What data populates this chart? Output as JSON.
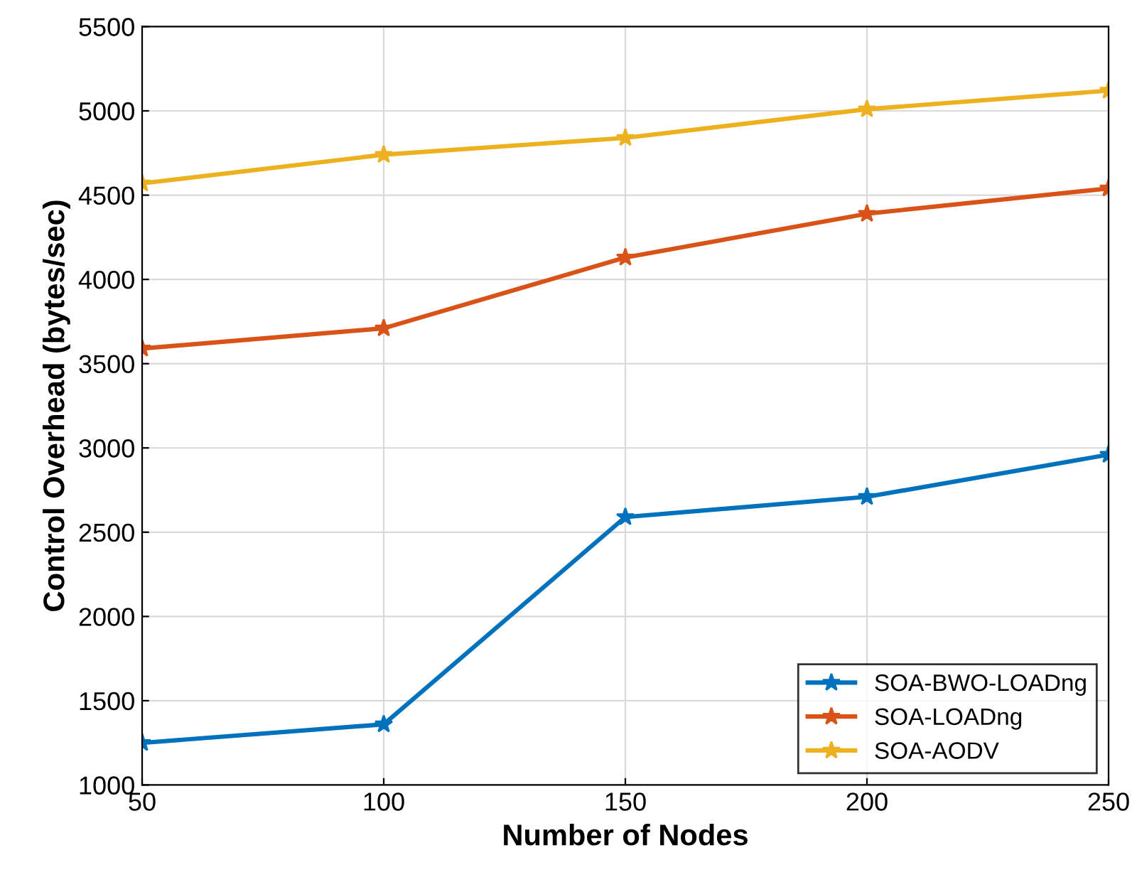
{
  "chart_data": {
    "type": "line",
    "xlabel": "Number of Nodes",
    "ylabel": "Control Overhead (bytes/sec)",
    "x": [
      50,
      100,
      150,
      200,
      250
    ],
    "series": [
      {
        "name": "SOA-BWO-LOADng",
        "color": "#0072bd",
        "values": [
          1250,
          1360,
          2590,
          2710,
          2960
        ]
      },
      {
        "name": "SOA-LOADng",
        "color": "#d95319",
        "values": [
          3590,
          3710,
          4130,
          4390,
          4540
        ]
      },
      {
        "name": "SOA-AODV",
        "color": "#edb120",
        "values": [
          4570,
          4740,
          4840,
          5010,
          5120
        ]
      }
    ],
    "xlim": [
      50,
      250
    ],
    "xticks": [
      50,
      100,
      150,
      200,
      250
    ],
    "ylim": [
      1000,
      5500
    ],
    "yticks": [
      1000,
      1500,
      2000,
      2500,
      3000,
      3500,
      4000,
      4500,
      5000,
      5500
    ],
    "grid": true,
    "legend": "bottom right",
    "marker": "star",
    "line_style": "solid"
  }
}
